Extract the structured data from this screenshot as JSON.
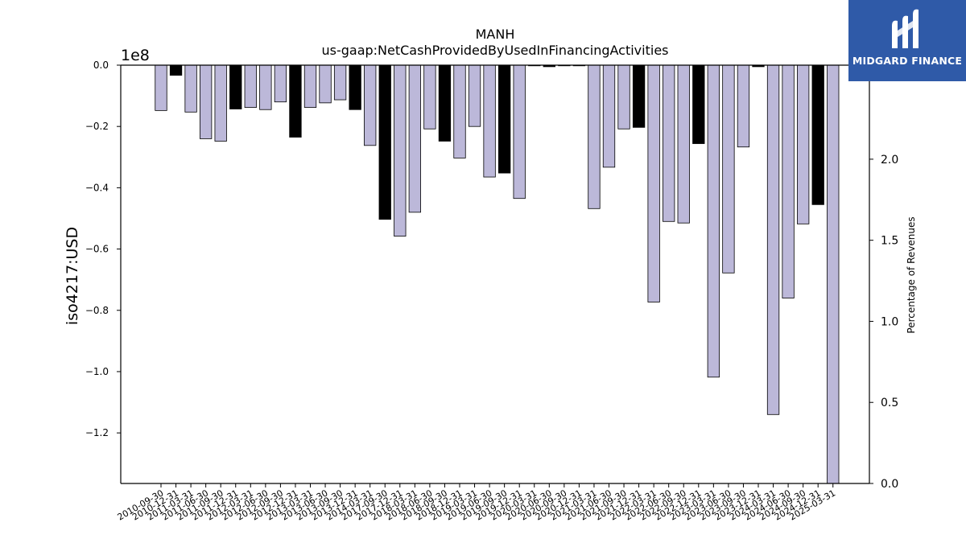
{
  "chart_data": {
    "type": "bar",
    "title": "MANH",
    "subtitle": "us-gaap:NetCashProvidedByUsedInFinancingActivities",
    "ylabel": "iso4217:USD",
    "y2label": "Percentage of Revenues",
    "offset_label": "1e8",
    "ylim": [
      -1.365,
      0.0
    ],
    "y2lim": [
      0.0,
      2.58
    ],
    "yticks": [
      "0.0",
      "−0.2",
      "−0.4",
      "−0.6",
      "−0.8",
      "−1.0",
      "−1.2"
    ],
    "y2ticks": [
      "0.0",
      "0.5",
      "1.0",
      "1.5",
      "2.0"
    ],
    "colors": {
      "primary": "#bcb8d9",
      "annual": "#000000",
      "edge": "#000000"
    },
    "categories": [
      "2010-09-30",
      "2010-12-31",
      "2011-03-31",
      "2011-06-30",
      "2011-09-30",
      "2011-12-31",
      "2012-03-31",
      "2012-06-30",
      "2012-09-30",
      "2012-12-31",
      "2013-03-31",
      "2013-06-30",
      "2013-09-30",
      "2013-12-31",
      "2014-03-31",
      "2017-09-30",
      "2017-12-31",
      "2018-03-31",
      "2018-06-30",
      "2018-09-30",
      "2018-12-31",
      "2019-03-31",
      "2019-06-30",
      "2019-09-30",
      "2019-12-31",
      "2020-03-31",
      "2020-06-30",
      "2020-09-30",
      "2020-12-31",
      "2021-03-31",
      "2021-06-30",
      "2021-09-30",
      "2021-12-31",
      "2022-03-31",
      "2022-06-30",
      "2022-09-30",
      "2022-12-31",
      "2023-03-31",
      "2023-06-30",
      "2023-09-30",
      "2023-12-31",
      "2024-03-31",
      "2024-06-30",
      "2024-09-30",
      "2024-12-31",
      "2025-03-31"
    ],
    "values": [
      -0.148,
      -0.033,
      -0.153,
      -0.24,
      -0.248,
      -0.143,
      -0.138,
      -0.145,
      -0.12,
      -0.235,
      -0.138,
      -0.123,
      -0.113,
      -0.145,
      -0.262,
      -0.503,
      -0.558,
      -0.48,
      -0.208,
      -0.248,
      -0.303,
      -0.2,
      -0.365,
      -0.352,
      -0.435,
      0,
      -0.005,
      0,
      -0.002,
      -0.468,
      -0.333,
      -0.208,
      -0.203,
      -0.773,
      -0.51,
      -0.515,
      -0.256,
      -1.018,
      -0.678,
      -0.267,
      -0.005,
      -1.14,
      -0.76,
      -0.518,
      -0.455,
      -1.365
    ],
    "annual": [
      false,
      true,
      false,
      false,
      false,
      true,
      false,
      false,
      false,
      true,
      false,
      false,
      false,
      true,
      false,
      true,
      false,
      false,
      false,
      true,
      false,
      false,
      false,
      true,
      false,
      false,
      true,
      false,
      false,
      false,
      false,
      false,
      true,
      false,
      false,
      false,
      true,
      false,
      false,
      false,
      true,
      false,
      false,
      false,
      true,
      false
    ],
    "grid": false
  },
  "brand": {
    "name": "MIDGARD FINANCE",
    "logo_icon": "midgard-m-icon"
  }
}
